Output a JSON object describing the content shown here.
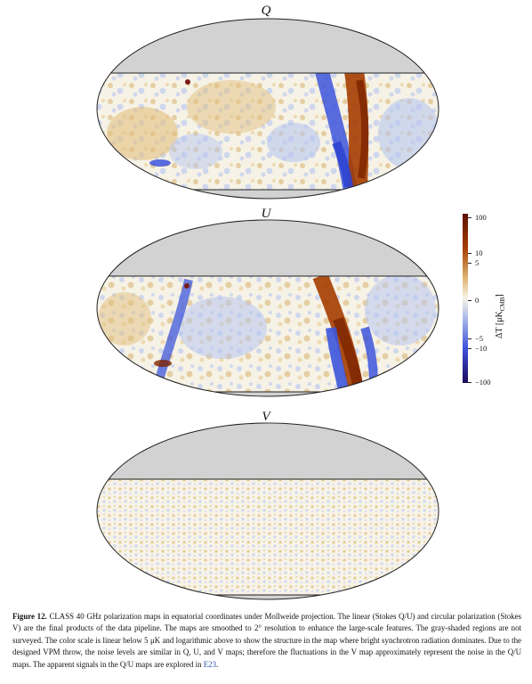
{
  "panels": [
    {
      "id": "q",
      "title": "Q"
    },
    {
      "id": "u",
      "title": "U"
    },
    {
      "id": "v",
      "title": "V"
    }
  ],
  "colors": {
    "unsurveyed_gray": "#d2d2d2",
    "positive_strong": "#a73800",
    "positive_weak": "#dfb672",
    "neutral": "#f7f3e6",
    "negative_weak": "#a8b9ea",
    "negative_strong": "#3e4fd8",
    "colorbar_top": "#6a1200",
    "colorbar_bottom": "#1a0a5c"
  },
  "colorbar": {
    "label": "ΔT [μK",
    "label_sub": "CMB",
    "label_end": "]",
    "ticks": [
      "100",
      "10",
      "5",
      "0",
      "−5",
      "−10",
      "−100"
    ],
    "scale": "linear below 5 μK, logarithmic above"
  },
  "caption": {
    "lead": "Figure 12.",
    "text": " CLASS 40 GHz polarization maps in equatorial coordinates under Mollweide projection. The linear (Stokes Q/U) and circular polarization (Stokes V) are the final products of the data pipeline. The maps are smoothed to 2° resolution to enhance the large-scale features. The gray-shaded regions are not surveyed. The color scale is linear below 5 μK and logarithmic above to show the structure in the map where bright synchrotron radiation dominates. Due to the designed VPM throw, the noise levels are similar in Q, U, and V maps; therefore the fluctuations in the V map approximately represent the noise in the Q/U maps. The apparent signals in the Q/U maps are explored in ",
    "ref": "E23",
    "end": "."
  }
}
